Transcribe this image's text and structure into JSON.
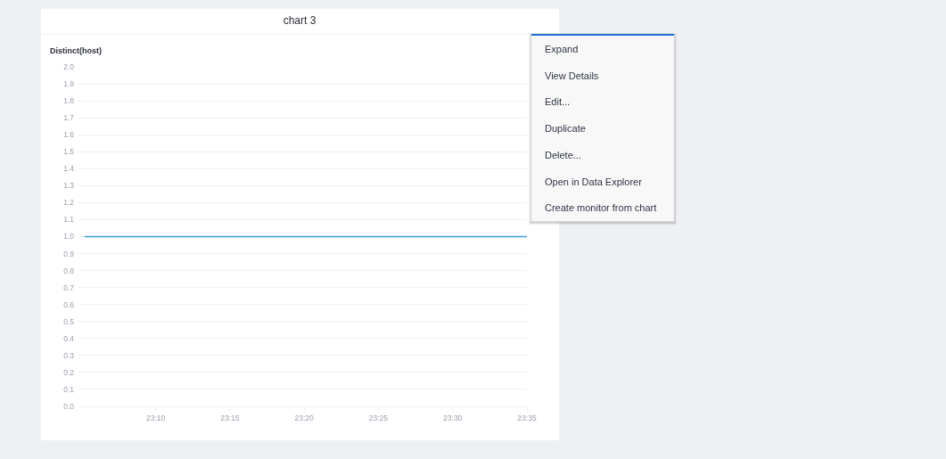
{
  "chart_data": {
    "type": "line",
    "title": "chart 3",
    "ylabel": "Distinct(host)",
    "x": [
      23.087,
      23.58333
    ],
    "series": [
      {
        "color": "#3d9ad6",
        "values": [
          1,
          1
        ]
      }
    ],
    "xlim": [
      23.08,
      23.58333
    ],
    "xticks": [
      {
        "value": 23.16667,
        "label": "23:10"
      },
      {
        "value": 23.25,
        "label": "23:15"
      },
      {
        "value": 23.33333,
        "label": "23:20"
      },
      {
        "value": 23.41667,
        "label": "23:25"
      },
      {
        "value": 23.5,
        "label": "23:30"
      },
      {
        "value": 23.58333,
        "label": "23:35"
      }
    ],
    "ylim": [
      0,
      2
    ],
    "yticks": [
      {
        "value": 0,
        "label": "0.0"
      },
      0.1,
      0.2,
      0.3,
      0.4,
      0.5,
      0.6,
      0.7,
      0.8,
      0.9,
      {
        "value": 1,
        "label": "1.0"
      },
      1.1,
      1.2,
      1.3,
      1.4,
      1.5,
      1.6,
      1.7,
      1.8,
      1.9,
      {
        "value": 2,
        "label": "2.0"
      }
    ],
    "grid": "y",
    "annotations": [
      "Expand",
      "View Details",
      "Edit...",
      "Duplicate",
      "Delete...",
      "Open in Data Explorer",
      "Create monitor from chart"
    ]
  }
}
